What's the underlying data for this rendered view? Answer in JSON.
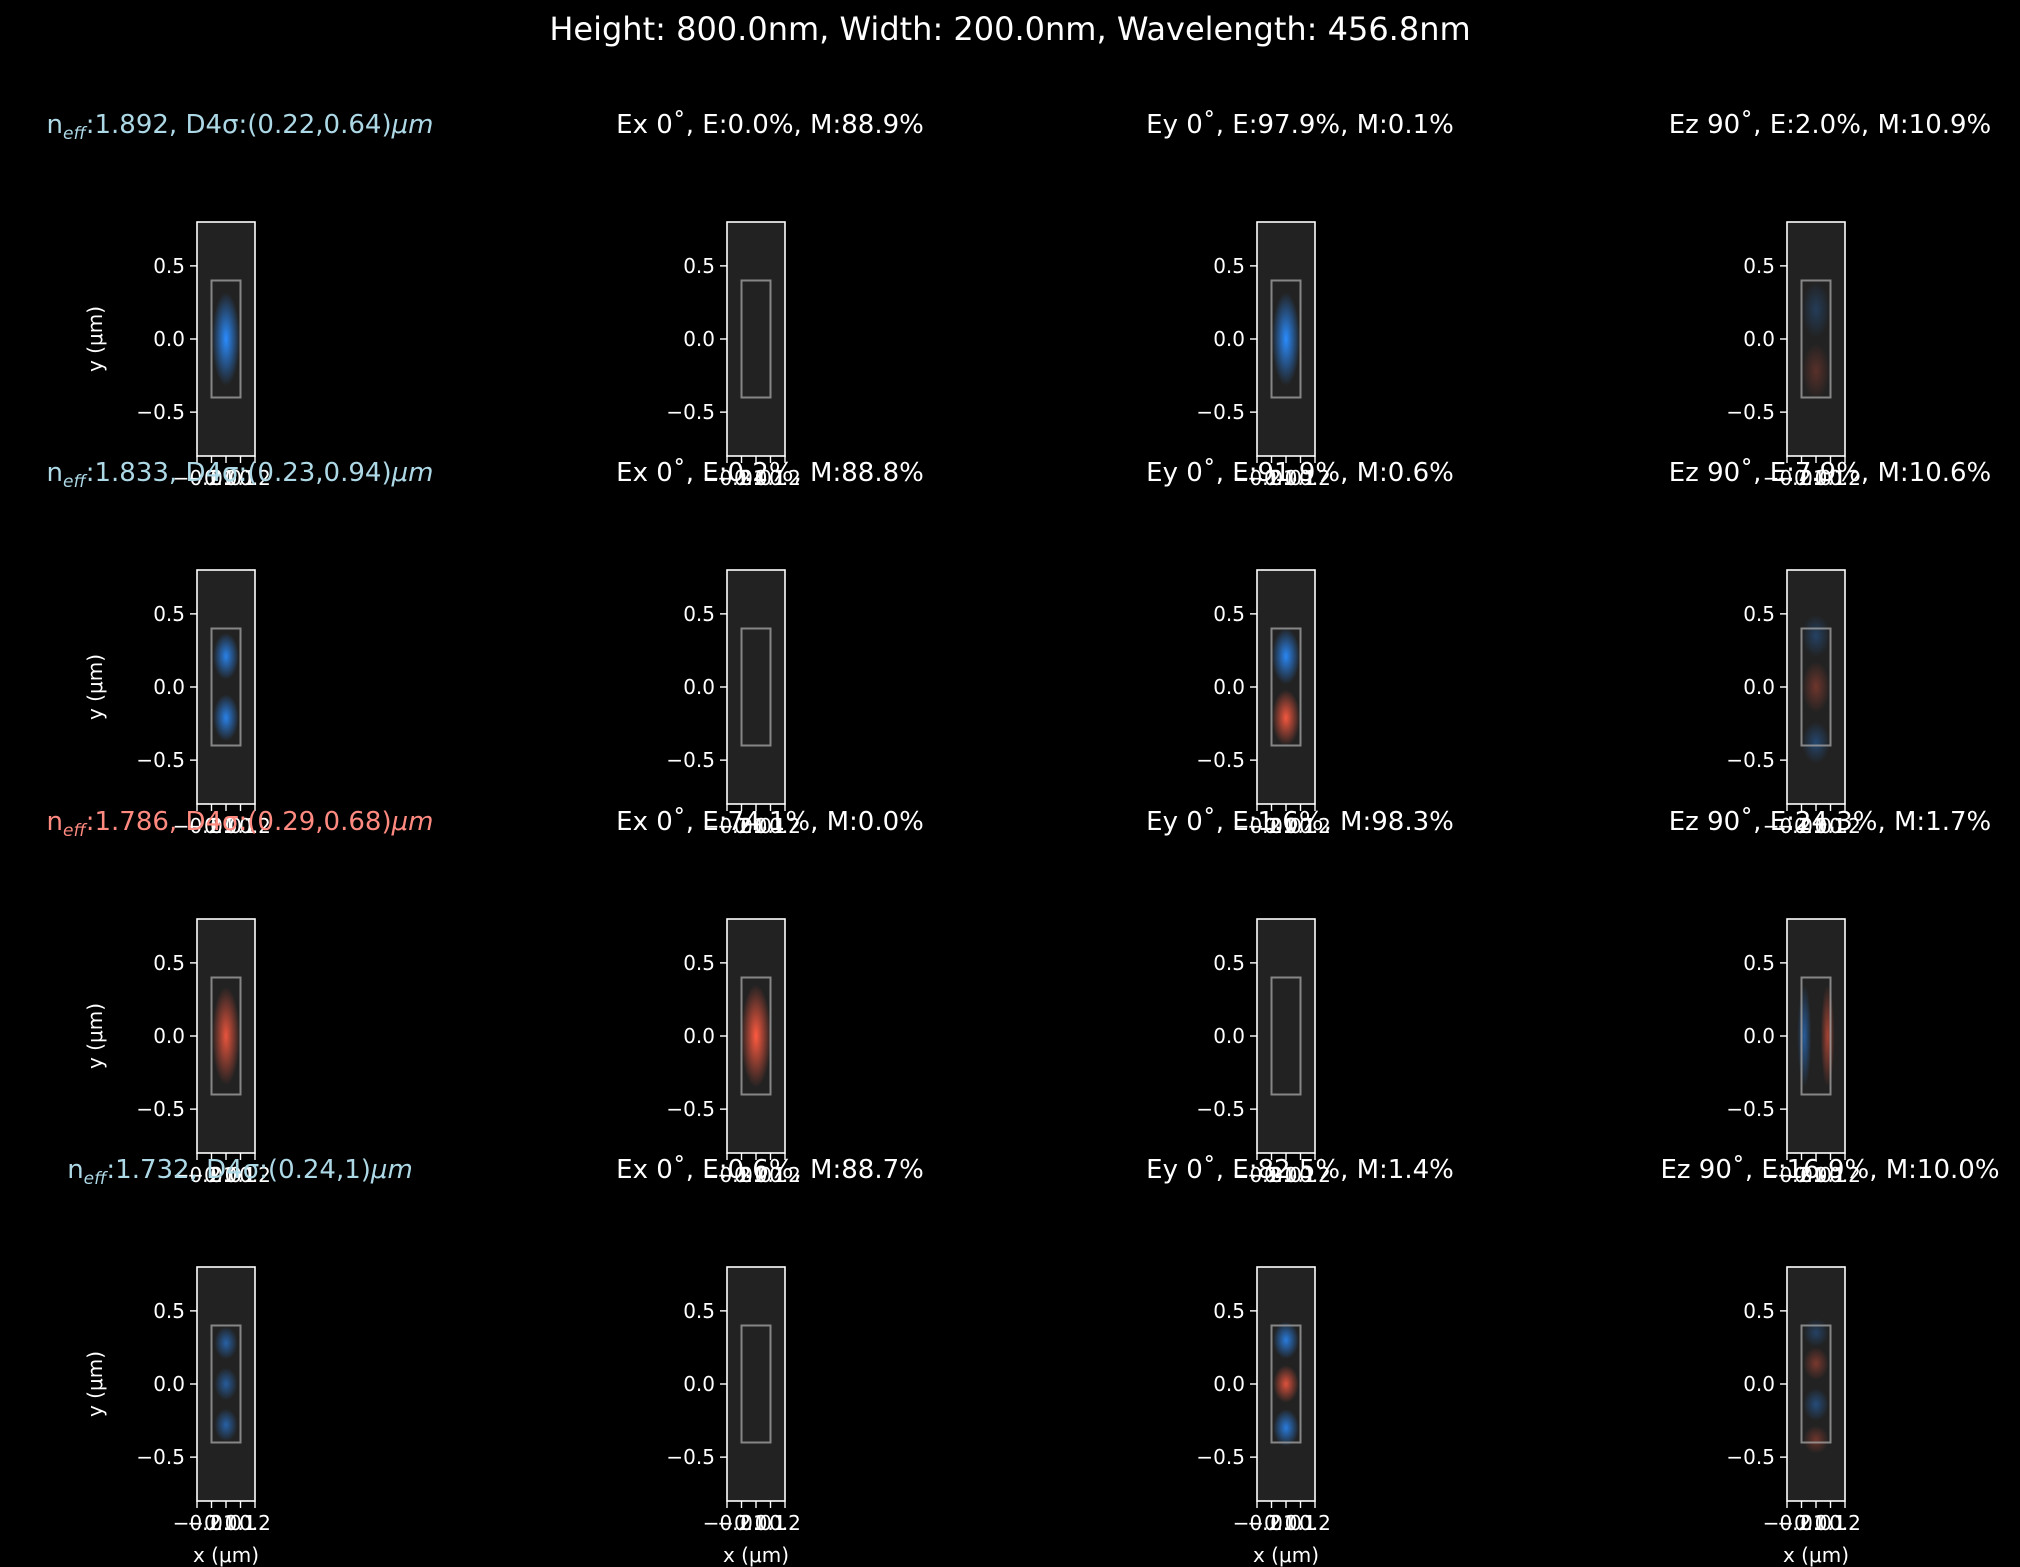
{
  "figure": {
    "title": "Height: 800.0nm, Width: 200.0nm, Wavelength: 456.8nm"
  },
  "colors": {
    "background": "#000000",
    "axes_face": "#222222",
    "positive_field": "#ff5a40",
    "negative_field": "#2a8cff",
    "title_positive": "#ff8a80",
    "title_negative": "#add8e6",
    "core_outline": "#a8a8a8"
  },
  "chart_data": {
    "type": "heatmap",
    "layout": "4 rows x 4 columns of field-profile panels",
    "waveguide_core": {
      "x_range_um": [
        -0.1,
        0.1
      ],
      "y_range_um": [
        -0.4,
        0.4
      ]
    },
    "xlim_um": [
      -0.2,
      0.2
    ],
    "ylim_um": [
      -0.8,
      0.8
    ],
    "x_tick_labels": [
      "−0.2",
      "−0.1",
      "0.0",
      "0.1",
      "0.2"
    ],
    "y_tick_labels": [
      "0.5",
      "0.0",
      "−0.5"
    ],
    "y_ticks": [
      0.5,
      0.0,
      -0.5
    ],
    "x_ticks": [
      -0.2,
      -0.1,
      0.0,
      0.1,
      0.2
    ],
    "xlabel": "x (μm)",
    "ylabel": "y (μm)",
    "modes": [
      {
        "neff": "1.892",
        "d4sigma": "(0.22,0.64)",
        "title_color": "negative",
        "panels": [
          {
            "component": "Total",
            "lobes": [
              {
                "y": 0.0,
                "sign": -1,
                "amp": 1.0,
                "sx": 0.06,
                "sy": 0.2
              }
            ]
          },
          {
            "component": "Ex",
            "phase": "0",
            "E": "0.0%",
            "M": "88.9%",
            "lobes": []
          },
          {
            "component": "Ey",
            "phase": "0",
            "E": "97.9%",
            "M": "0.1%",
            "lobes": [
              {
                "y": 0.0,
                "sign": -1,
                "amp": 1.0,
                "sx": 0.06,
                "sy": 0.2
              }
            ]
          },
          {
            "component": "Ez",
            "phase": "90",
            "E": "2.0%",
            "M": "10.9%",
            "lobes": [
              {
                "y": 0.2,
                "sign": -1,
                "amp": 0.25,
                "sx": 0.06,
                "sy": 0.12
              },
              {
                "y": -0.22,
                "sign": 1,
                "amp": 0.25,
                "sx": 0.06,
                "sy": 0.12
              }
            ]
          }
        ]
      },
      {
        "neff": "1.833",
        "d4sigma": "(0.23,0.94)",
        "title_color": "negative",
        "panels": [
          {
            "component": "Total",
            "lobes": [
              {
                "y": 0.21,
                "sign": -1,
                "amp": 0.9,
                "sx": 0.055,
                "sy": 0.1
              },
              {
                "y": -0.21,
                "sign": -1,
                "amp": 0.9,
                "sx": 0.055,
                "sy": 0.1
              }
            ]
          },
          {
            "component": "Ex",
            "phase": "0",
            "E": "0.2%",
            "M": "88.8%",
            "lobes": []
          },
          {
            "component": "Ey",
            "phase": "0",
            "E": "91.9%",
            "M": "0.6%",
            "lobes": [
              {
                "y": 0.21,
                "sign": -1,
                "amp": 0.95,
                "sx": 0.06,
                "sy": 0.12
              },
              {
                "y": -0.21,
                "sign": 1,
                "amp": 0.95,
                "sx": 0.06,
                "sy": 0.12
              }
            ]
          },
          {
            "component": "Ez",
            "phase": "90",
            "E": "7.9%",
            "M": "10.6%",
            "lobes": [
              {
                "y": 0.35,
                "sign": -1,
                "amp": 0.3,
                "sx": 0.06,
                "sy": 0.09
              },
              {
                "y": 0.0,
                "sign": 1,
                "amp": 0.35,
                "sx": 0.06,
                "sy": 0.11
              },
              {
                "y": -0.38,
                "sign": -1,
                "amp": 0.35,
                "sx": 0.06,
                "sy": 0.09
              }
            ]
          }
        ]
      },
      {
        "neff": "1.786",
        "d4sigma": "(0.29,0.68)",
        "title_color": "positive",
        "panels": [
          {
            "component": "Total",
            "lobes": [
              {
                "y": 0.0,
                "sign": 1,
                "amp": 0.9,
                "sx": 0.06,
                "sy": 0.21
              }
            ]
          },
          {
            "component": "Ex",
            "phase": "0",
            "E": "74.1%",
            "M": "0.0%",
            "lobes": [
              {
                "y": 0.0,
                "sign": 1,
                "amp": 1.0,
                "sx": 0.065,
                "sy": 0.22
              }
            ]
          },
          {
            "component": "Ey",
            "phase": "0",
            "E": "1.6%",
            "M": "98.3%",
            "lobes": []
          },
          {
            "component": "Ez",
            "phase": "90",
            "E": "24.3%",
            "M": "1.7%",
            "lobes": [
              {
                "y": 0.0,
                "x": -0.08,
                "sign": -1,
                "amp": 0.55,
                "sx": 0.03,
                "sy": 0.22
              },
              {
                "y": 0.0,
                "x": 0.08,
                "sign": 1,
                "amp": 0.6,
                "sx": 0.03,
                "sy": 0.22
              }
            ]
          }
        ]
      },
      {
        "neff": "1.732",
        "d4sigma": "(0.24,1)",
        "title_color": "negative",
        "panels": [
          {
            "component": "Total",
            "lobes": [
              {
                "y": 0.28,
                "sign": -1,
                "amp": 0.6,
                "sx": 0.05,
                "sy": 0.07
              },
              {
                "y": 0.0,
                "sign": -1,
                "amp": 0.55,
                "sx": 0.05,
                "sy": 0.07
              },
              {
                "y": -0.28,
                "sign": -1,
                "amp": 0.6,
                "sx": 0.05,
                "sy": 0.07
              }
            ]
          },
          {
            "component": "Ex",
            "phase": "0",
            "E": "0.6%",
            "M": "88.7%",
            "lobes": []
          },
          {
            "component": "Ey",
            "phase": "0",
            "E": "82.5%",
            "M": "1.4%",
            "lobes": [
              {
                "y": 0.3,
                "sign": -1,
                "amp": 0.85,
                "sx": 0.055,
                "sy": 0.08
              },
              {
                "y": 0.0,
                "sign": 1,
                "amp": 0.85,
                "sx": 0.055,
                "sy": 0.08
              },
              {
                "y": -0.3,
                "sign": -1,
                "amp": 0.85,
                "sx": 0.055,
                "sy": 0.08
              }
            ]
          },
          {
            "component": "Ez",
            "phase": "90",
            "E": "16.9%",
            "M": "10.0%",
            "lobes": [
              {
                "y": 0.35,
                "sign": -1,
                "amp": 0.3,
                "sx": 0.055,
                "sy": 0.06
              },
              {
                "y": 0.14,
                "sign": 1,
                "amp": 0.4,
                "sx": 0.055,
                "sy": 0.07
              },
              {
                "y": -0.14,
                "sign": -1,
                "amp": 0.4,
                "sx": 0.055,
                "sy": 0.07
              },
              {
                "y": -0.38,
                "sign": 1,
                "amp": 0.35,
                "sx": 0.055,
                "sy": 0.06
              }
            ]
          }
        ]
      }
    ]
  },
  "panel_titles": [
    [
      "n_eff:1.892, D4σ:(0.22,0.64)μm",
      "Ex 0˚, E:0.0%, M:88.9%",
      "Ey 0˚, E:97.9%, M:0.1%",
      "Ez 90˚, E:2.0%, M:10.9%"
    ],
    [
      "n_eff:1.833, D4σ:(0.23,0.94)μm",
      "Ex 0˚, E:0.2%, M:88.8%",
      "Ey 0˚, E:91.9%, M:0.6%",
      "Ez 90˚, E:7.9%, M:10.6%"
    ],
    [
      "n_eff:1.786, D4σ:(0.29,0.68)μm",
      "Ex 0˚, E:74.1%, M:0.0%",
      "Ey 0˚, E:1.6%, M:98.3%",
      "Ez 90˚, E:24.3%, M:1.7%"
    ],
    [
      "n_eff:1.732, D4σ:(0.24,1)μm",
      "Ex 0˚, E:0.6%, M:88.7%",
      "Ey 0˚, E:82.5%, M:1.4%",
      "Ez 90˚, E:16.9%, M:10.0%"
    ]
  ]
}
